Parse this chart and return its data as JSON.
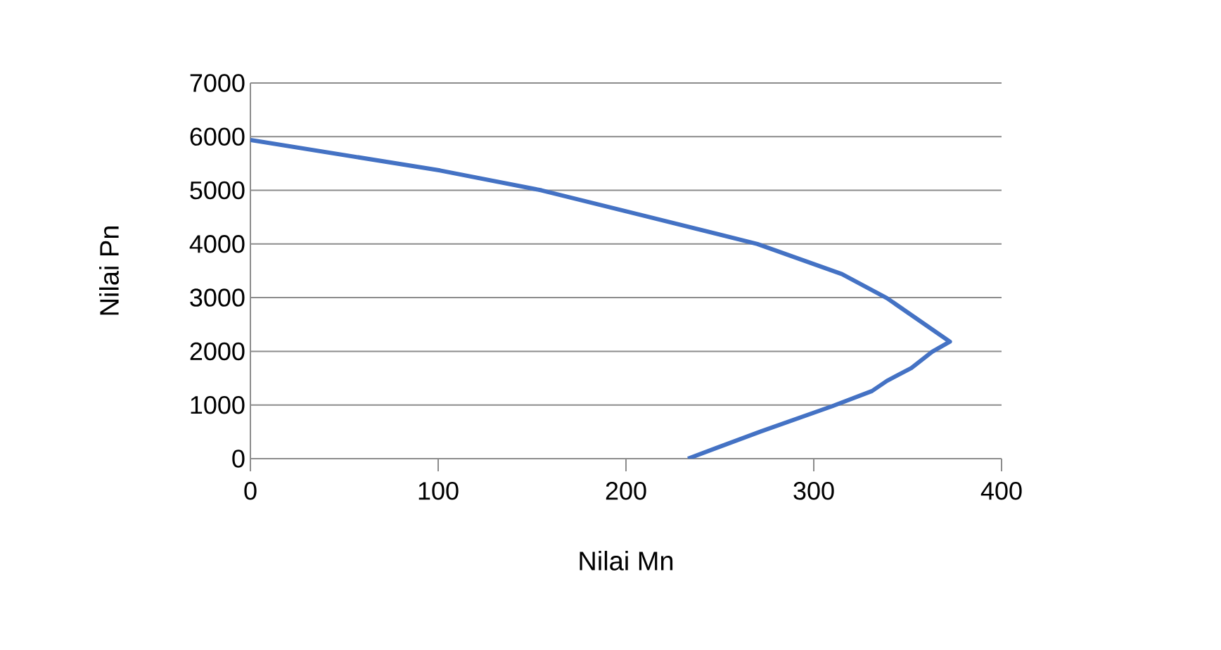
{
  "chart_data": {
    "type": "line",
    "xlabel": "Nilai Mn",
    "ylabel": "Nilai Pn",
    "series": [
      {
        "color": "#4472c4",
        "x": [
          0,
          101,
          155,
          208,
          270,
          315,
          339,
          372.5,
          363,
          352,
          339,
          331,
          310,
          272,
          233
        ],
        "values": [
          5940,
          5370,
          5000,
          4540,
          4000,
          3440,
          2990,
          2180,
          1990,
          1690,
          1450,
          1260,
          980,
          510,
          0
        ]
      }
    ],
    "xlim": [
      0,
      400
    ],
    "xticks": [
      0,
      100,
      200,
      300,
      400
    ],
    "ylim": [
      0,
      7000
    ],
    "yticks": [
      0,
      1000,
      2000,
      3000,
      4000,
      5000,
      6000,
      7000
    ],
    "grid": "y",
    "legend": false,
    "marker": "none",
    "line_style": "solid"
  }
}
